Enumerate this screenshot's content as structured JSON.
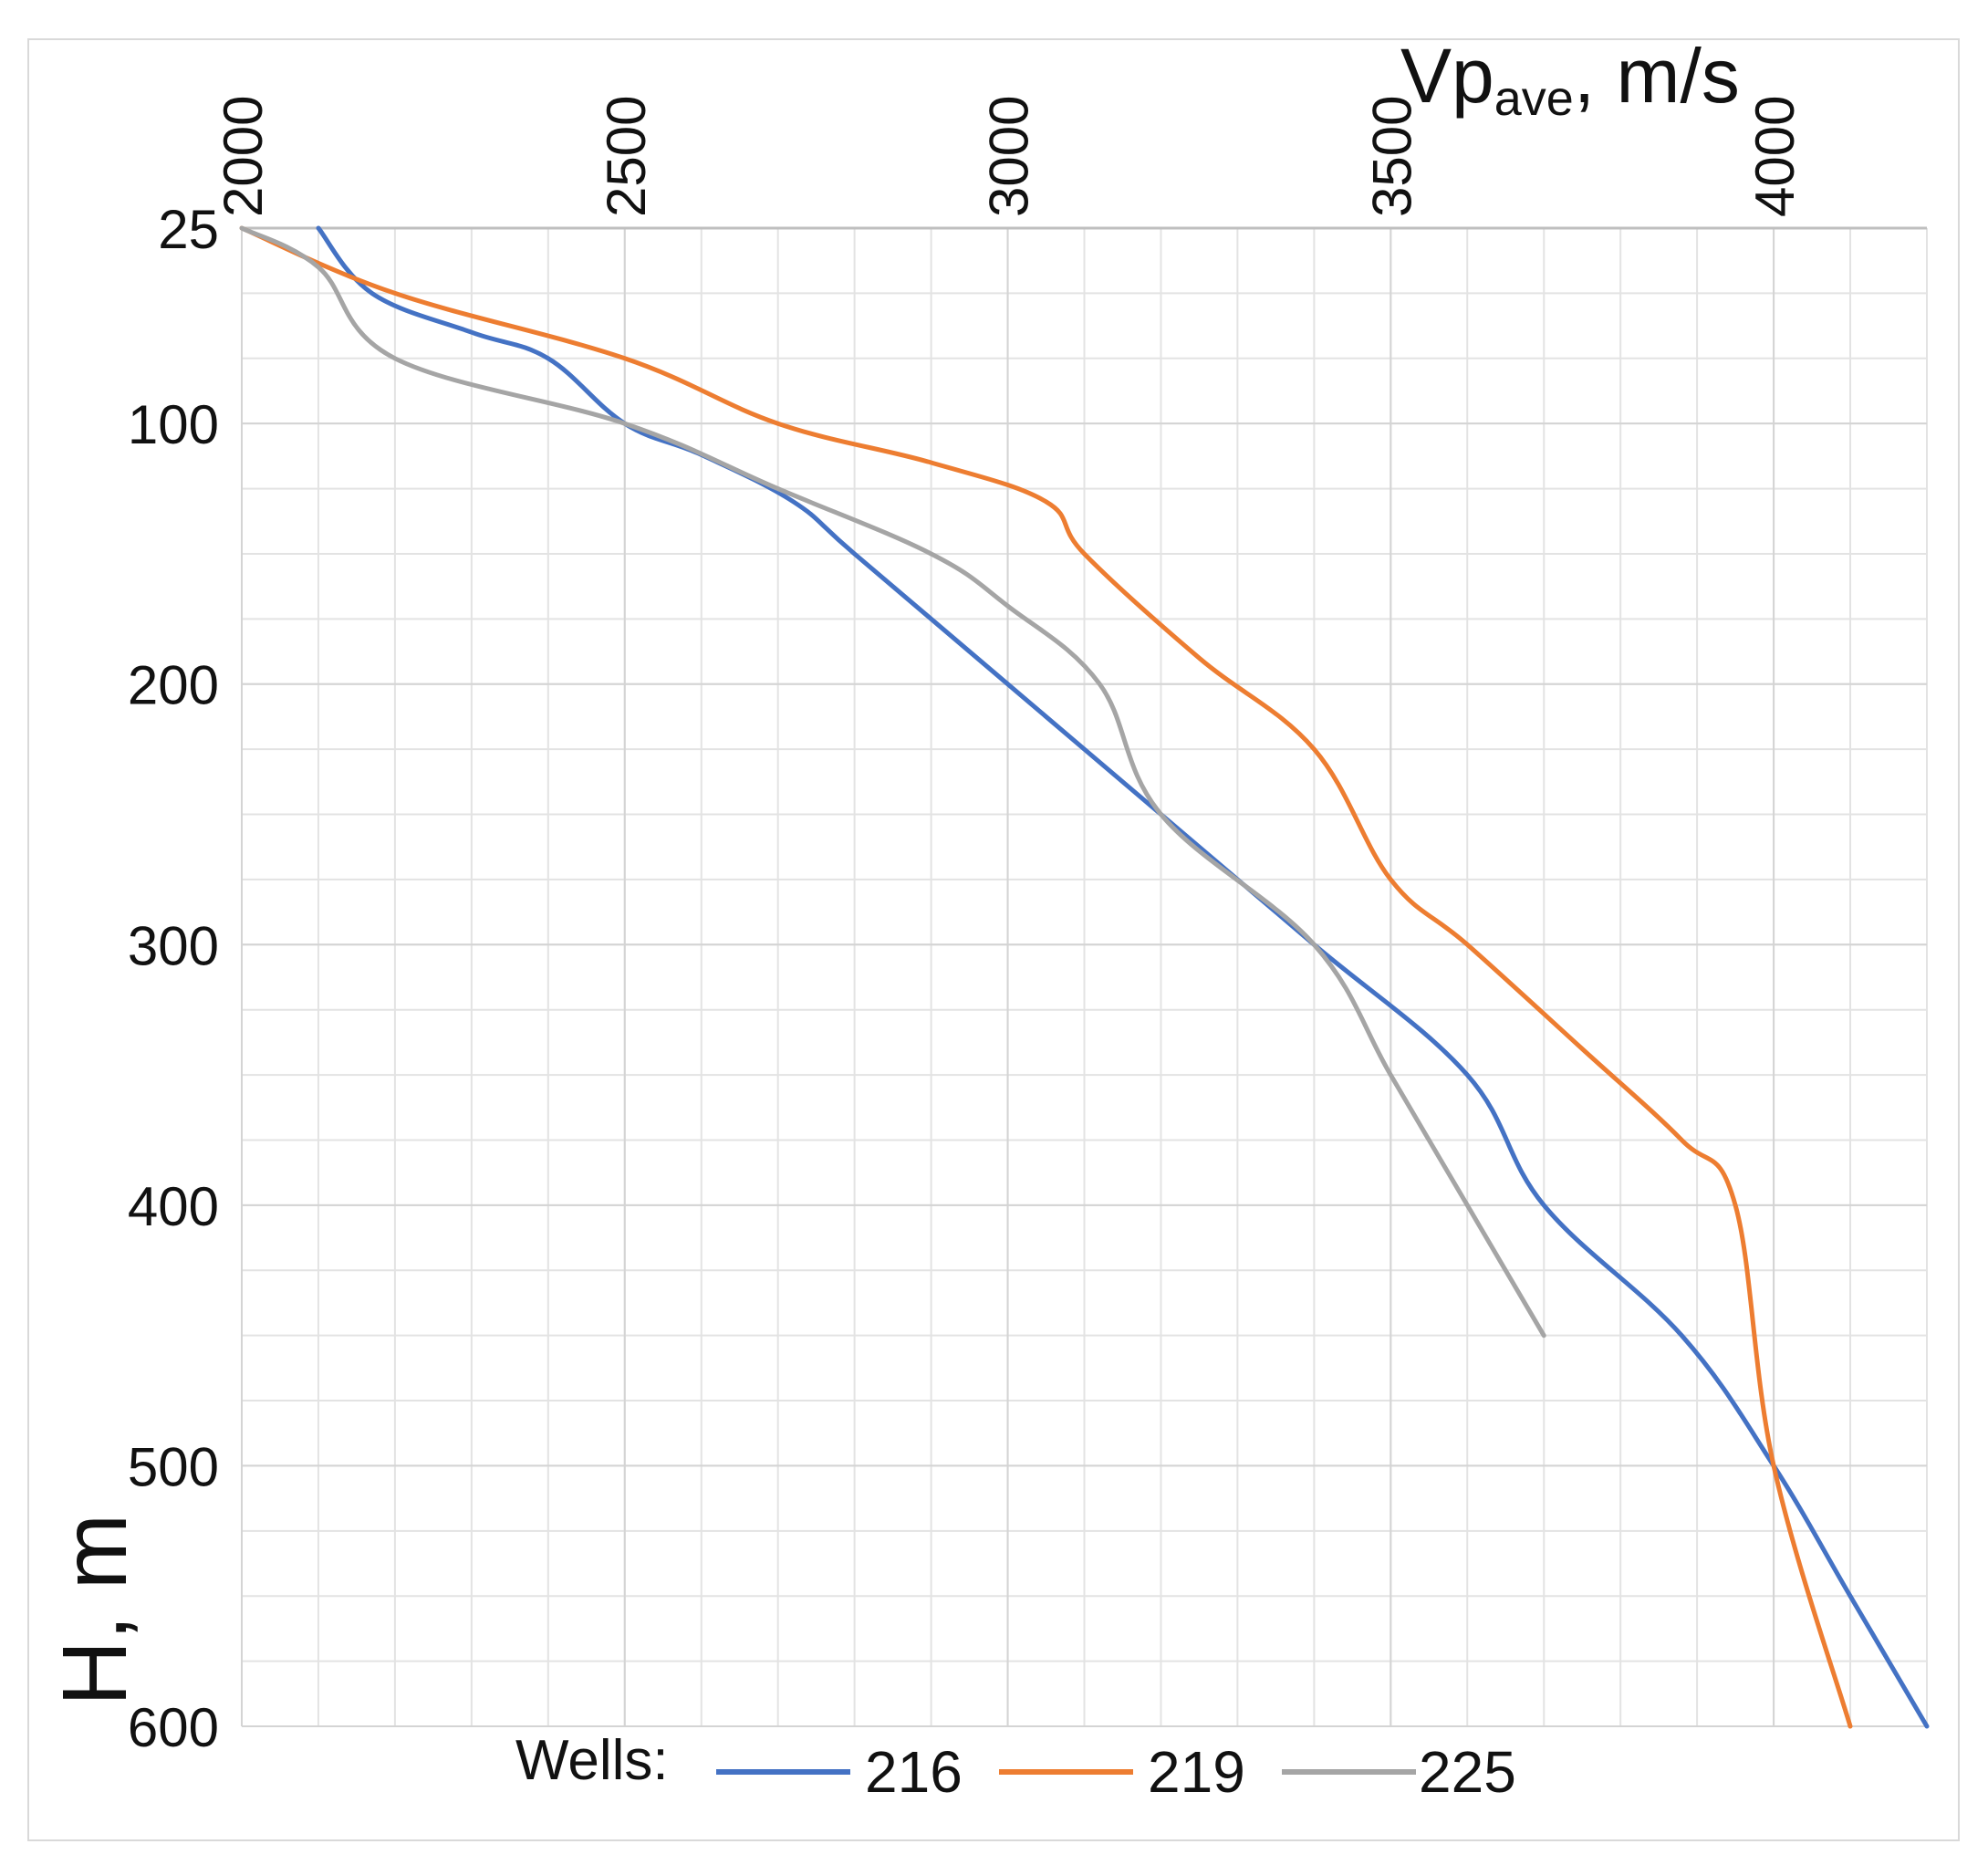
{
  "chart_data": {
    "type": "line",
    "xlabel": "Vp",
    "xlabel_sub": "ave",
    "xlabel_tail": ", m/s",
    "ylabel": "H, m",
    "xlim": [
      2000,
      4200
    ],
    "ylim": [
      25,
      600
    ],
    "x_ticks": [
      2000,
      2500,
      3000,
      3500,
      4000
    ],
    "y_ticks": [
      25,
      100,
      200,
      300,
      400,
      500,
      600
    ],
    "x_minor_step": 100,
    "y_minor_step": 25,
    "grid": true,
    "legend_title": "Wells:",
    "legend_position": "bottom",
    "series": [
      {
        "name": "216",
        "color": "#4472c4",
        "points": [
          [
            2100,
            25
          ],
          [
            2170,
            50
          ],
          [
            2300,
            65
          ],
          [
            2400,
            75
          ],
          [
            2500,
            100
          ],
          [
            2600,
            112
          ],
          [
            2720,
            130
          ],
          [
            2800,
            150
          ],
          [
            3000,
            200
          ],
          [
            3200,
            250
          ],
          [
            3400,
            300
          ],
          [
            3600,
            350
          ],
          [
            3700,
            400
          ],
          [
            3880,
            450
          ],
          [
            4000,
            500
          ],
          [
            4100,
            550
          ],
          [
            4200,
            600
          ]
        ]
      },
      {
        "name": "219",
        "color": "#ed7d31",
        "points": [
          [
            2000,
            25
          ],
          [
            2200,
            50
          ],
          [
            2500,
            75
          ],
          [
            2700,
            100
          ],
          [
            2900,
            115
          ],
          [
            3050,
            130
          ],
          [
            3100,
            150
          ],
          [
            3250,
            190
          ],
          [
            3400,
            225
          ],
          [
            3500,
            275
          ],
          [
            3600,
            300
          ],
          [
            3750,
            340
          ],
          [
            3880,
            375
          ],
          [
            3950,
            400
          ],
          [
            4000,
            500
          ],
          [
            4100,
            600
          ]
        ]
      },
      {
        "name": "225",
        "color": "#a5a5a5",
        "points": [
          [
            2000,
            25
          ],
          [
            2100,
            40
          ],
          [
            2200,
            75
          ],
          [
            2500,
            100
          ],
          [
            2700,
            125
          ],
          [
            2900,
            150
          ],
          [
            3000,
            170
          ],
          [
            3120,
            200
          ],
          [
            3200,
            250
          ],
          [
            3400,
            300
          ],
          [
            3500,
            350
          ],
          [
            3600,
            400
          ],
          [
            3700,
            450
          ]
        ]
      }
    ]
  }
}
